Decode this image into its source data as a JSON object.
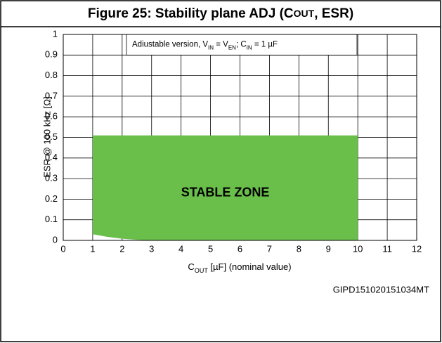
{
  "chart_data": {
    "type": "area",
    "title_parts": [
      "Figure 25: Stability plane ADJ (C",
      "OUT",
      ", ESR)"
    ],
    "annotation_parts": [
      "Adiustable version, V",
      "IN",
      " = V",
      "EN",
      ";  C",
      "IN",
      " = 1 µF"
    ],
    "x_label_parts": [
      "C",
      "OUT",
      " [µF] (nominal value)"
    ],
    "y_label": "ESR @ 100 kHz [Ω]",
    "zone_label": "STABLE ZONE",
    "code": "GIPD151020151034MT",
    "x": [
      1,
      1.5,
      2,
      2.5,
      3,
      10
    ],
    "series": [
      {
        "name": "upper",
        "values": [
          0.51,
          0.51,
          0.51,
          0.51,
          0.51,
          0.51
        ]
      },
      {
        "name": "lower",
        "values": [
          0.03,
          0.017,
          0.008,
          0.003,
          0,
          0
        ]
      }
    ],
    "color": "#6abf4b",
    "xlim": [
      0,
      12
    ],
    "xticks": [
      0,
      1,
      2,
      3,
      4,
      5,
      6,
      7,
      8,
      9,
      10,
      11,
      12
    ],
    "ylim": [
      0,
      1
    ],
    "yticks": [
      0,
      0.1,
      0.2,
      0.3,
      0.4,
      0.5,
      0.6,
      0.7,
      0.8,
      0.9,
      1
    ],
    "grid": true
  }
}
